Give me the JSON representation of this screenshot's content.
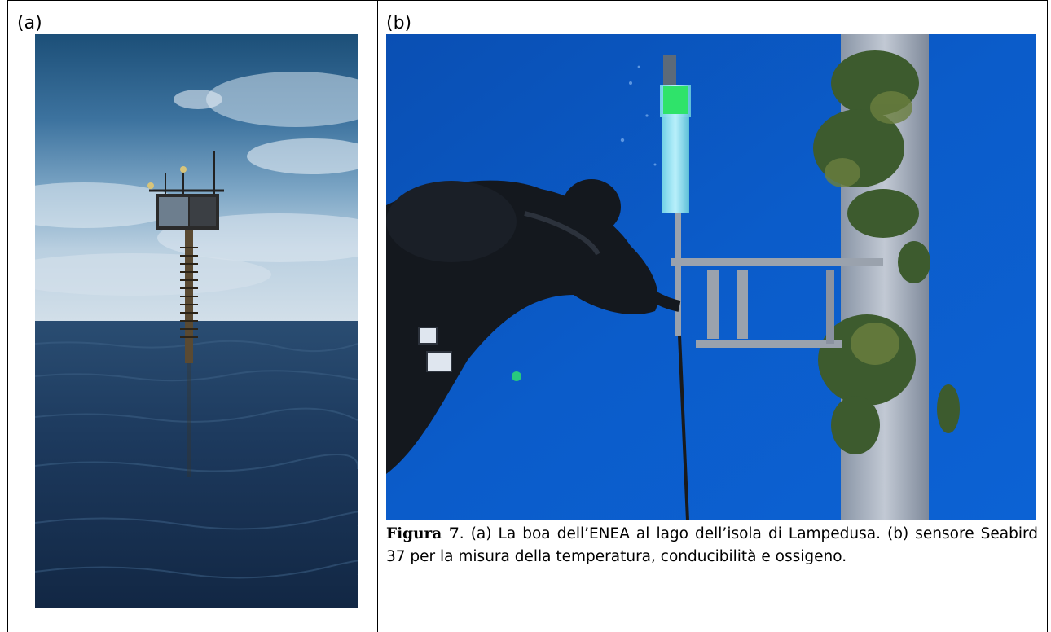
{
  "panels": {
    "a": {
      "label": "(a)"
    },
    "b": {
      "label": "(b)"
    }
  },
  "caption": {
    "figure_label": "Figura 7",
    "text": ". (a) La boa dell’ENEA al lago dell’isola di Lampedusa. (b) sensore Seabird 37 per la misura della temperatura, conducibilità e ossigeno."
  },
  "colors": {
    "sky_top": "#1f5a86",
    "sky_mid": "#6f9cc0",
    "sea": "#1b3556",
    "underwater": "#0a58c8",
    "sensor_green": "#2fe36a"
  }
}
